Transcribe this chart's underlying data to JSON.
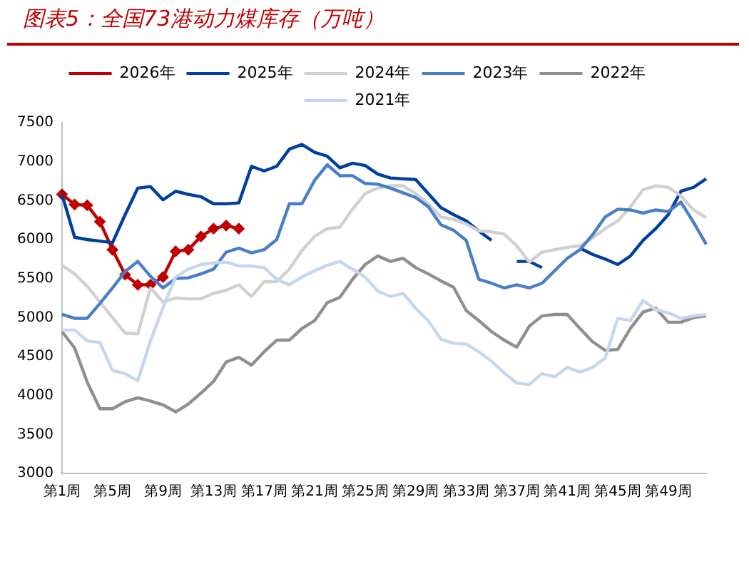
{
  "chart_data": {
    "type": "line",
    "title": "图表5：全国73港动力煤库存（万吨）",
    "categories": [
      "第1周",
      null,
      null,
      null,
      "第5周",
      null,
      null,
      null,
      "第9周",
      null,
      null,
      null,
      "第13周",
      null,
      null,
      null,
      "第17周",
      null,
      null,
      null,
      "第21周",
      null,
      null,
      null,
      "第25周",
      null,
      null,
      null,
      "第29周",
      null,
      null,
      null,
      "第33周",
      null,
      null,
      null,
      "第37周",
      null,
      null,
      null,
      "第41周",
      null,
      null,
      null,
      "第45周",
      null,
      null,
      null,
      "第49周",
      null,
      null,
      null
    ],
    "ylim": [
      3000,
      7500
    ],
    "yticks": [
      3000,
      3500,
      4000,
      4500,
      5000,
      5500,
      6000,
      6500,
      7000,
      7500
    ],
    "grid": false,
    "legend": "top",
    "line_style": "solid",
    "series": [
      {
        "name": "2026年",
        "color": "#c00000",
        "marker": "diamond",
        "values": [
          6580,
          6450,
          6440,
          6230,
          5870,
          5550,
          5420,
          5420,
          5520,
          5850,
          5870,
          6040,
          6140,
          6180,
          6140,
          null,
          null,
          null,
          null,
          null,
          null,
          null,
          null,
          null,
          null,
          null,
          null,
          null,
          null,
          null,
          null,
          null,
          null,
          null,
          null,
          null,
          null,
          null,
          null,
          null,
          null,
          null,
          null,
          null,
          null,
          null,
          null,
          null,
          null,
          null,
          null,
          null
        ]
      },
      {
        "name": "2025年",
        "color": "#003f9e",
        "marker": "none",
        "values": [
          6580,
          6030,
          6000,
          5980,
          5960,
          6320,
          6660,
          6680,
          6510,
          6620,
          6580,
          6550,
          6460,
          6460,
          6470,
          6940,
          6880,
          6940,
          7160,
          7220,
          7120,
          7070,
          6920,
          6980,
          6950,
          6840,
          6790,
          6780,
          6770,
          6590,
          6410,
          6320,
          6240,
          6110,
          5990,
          null,
          5720,
          5720,
          5640,
          null,
          null,
          5890,
          5810,
          5750,
          5680,
          5790,
          5990,
          6140,
          6320,
          6620,
          6670,
          6780
        ]
      },
      {
        "name": "2024年",
        "color": "#d0d0d0",
        "marker": "none",
        "values": [
          5670,
          5560,
          5400,
          5200,
          5000,
          4800,
          4790,
          5380,
          5200,
          5250,
          5240,
          5240,
          5310,
          5350,
          5420,
          5270,
          5460,
          5460,
          5620,
          5860,
          6040,
          6140,
          6160,
          6390,
          6590,
          6660,
          6690,
          6690,
          6590,
          6460,
          6290,
          6260,
          6200,
          6110,
          6100,
          6070,
          5920,
          5710,
          5840,
          5870,
          5900,
          5920,
          6020,
          6140,
          6240,
          6420,
          6640,
          6690,
          6670,
          6560,
          6380,
          6280
        ]
      },
      {
        "name": "2023年",
        "color": "#4a7fc8",
        "marker": "none",
        "values": [
          5040,
          4990,
          4990,
          5180,
          5380,
          5590,
          5720,
          5530,
          5380,
          5500,
          5510,
          5560,
          5620,
          5840,
          5890,
          5830,
          5870,
          6000,
          6460,
          6460,
          6760,
          6960,
          6820,
          6820,
          6720,
          6710,
          6660,
          6600,
          6540,
          6420,
          6190,
          6120,
          5990,
          5490,
          5440,
          5380,
          5420,
          5380,
          5440,
          5600,
          5760,
          5870,
          6060,
          6290,
          6390,
          6380,
          6340,
          6380,
          6360,
          6480,
          6220,
          5940
        ]
      },
      {
        "name": "2022年",
        "color": "#8f8f8f",
        "marker": "none",
        "values": [
          4820,
          4610,
          4170,
          3830,
          3830,
          3920,
          3970,
          3930,
          3880,
          3790,
          3890,
          4030,
          4180,
          4430,
          4490,
          4390,
          4560,
          4710,
          4710,
          4860,
          4960,
          5190,
          5260,
          5490,
          5680,
          5790,
          5720,
          5760,
          5640,
          5560,
          5470,
          5390,
          5090,
          4960,
          4820,
          4710,
          4620,
          4890,
          5020,
          5040,
          5040,
          4860,
          4690,
          4580,
          4590,
          4860,
          5070,
          5120,
          4940,
          4940,
          5000,
          5020
        ]
      },
      {
        "name": "2021年",
        "color": "#c5d7ee",
        "marker": "none",
        "values": [
          4840,
          4840,
          4700,
          4680,
          4320,
          4280,
          4190,
          4700,
          5130,
          5520,
          5620,
          5680,
          5700,
          5710,
          5660,
          5660,
          5640,
          5490,
          5420,
          5520,
          5600,
          5670,
          5720,
          5620,
          5520,
          5340,
          5270,
          5310,
          5120,
          4960,
          4720,
          4670,
          4660,
          4560,
          4440,
          4290,
          4160,
          4140,
          4280,
          4240,
          4360,
          4300,
          4360,
          4480,
          4990,
          4960,
          5220,
          5100,
          5060,
          4990,
          5020,
          5040
        ]
      }
    ]
  }
}
